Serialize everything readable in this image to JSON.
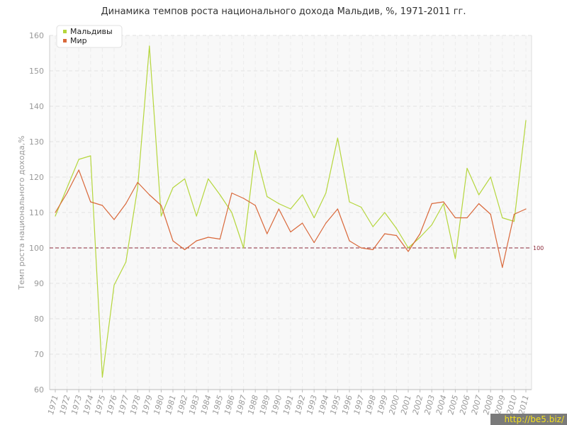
{
  "title": "Динамика темпов роста национального дохода Мальдив, %, 1971-2011 гг.",
  "watermark": "http://be5.biz/",
  "chart_data": {
    "type": "line",
    "title": "Динамика темпов роста национального дохода Мальдив, %, 1971-2011 гг.",
    "xlabel": "",
    "ylabel": "Темп роста национального дохода,%",
    "ylim": [
      60,
      160
    ],
    "yticks": [
      60,
      70,
      80,
      90,
      100,
      110,
      120,
      130,
      140,
      150,
      160
    ],
    "grid": true,
    "legend": "top-left",
    "reference_line": {
      "value": 100,
      "label": "100",
      "color": "#8b2a3a"
    },
    "categories": [
      "1971",
      "1972",
      "1973",
      "1974",
      "1975",
      "1976",
      "1977",
      "1978",
      "1979",
      "1980",
      "1981",
      "1982",
      "1983",
      "1984",
      "1985",
      "1986",
      "1987",
      "1988",
      "1989",
      "1990",
      "1991",
      "1992",
      "1993",
      "1994",
      "1995",
      "1996",
      "1997",
      "1998",
      "1999",
      "2000",
      "2001",
      "2002",
      "2003",
      "2004",
      "2005",
      "2006",
      "2007",
      "2008",
      "2009",
      "2010",
      "2011"
    ],
    "series": [
      {
        "name": "Мальдивы",
        "color": "#b5d63c",
        "values": [
          109,
          117,
          125,
          126,
          63.5,
          89.5,
          96,
          117,
          157,
          109,
          117,
          119.5,
          109,
          119.5,
          115,
          110,
          100,
          127.5,
          114.5,
          112.5,
          111,
          115,
          108.5,
          115.5,
          131,
          113,
          111.5,
          106,
          110,
          105.5,
          100,
          103,
          106.5,
          112.5,
          97,
          122.5,
          115,
          120,
          108.5,
          107.5,
          136
        ]
      },
      {
        "name": "Мир",
        "color": "#d9683a",
        "values": [
          110,
          115.5,
          122,
          113,
          112,
          108,
          112.5,
          118.5,
          115,
          112,
          102,
          99.5,
          102,
          103,
          102.5,
          115.5,
          114,
          112,
          104,
          111,
          104.5,
          107,
          101.5,
          107,
          111,
          102,
          100,
          99.5,
          104,
          103.5,
          99,
          104,
          112.5,
          113,
          108.5,
          108.5,
          112.5,
          109.5,
          94.5,
          109.5,
          111
        ]
      }
    ]
  }
}
